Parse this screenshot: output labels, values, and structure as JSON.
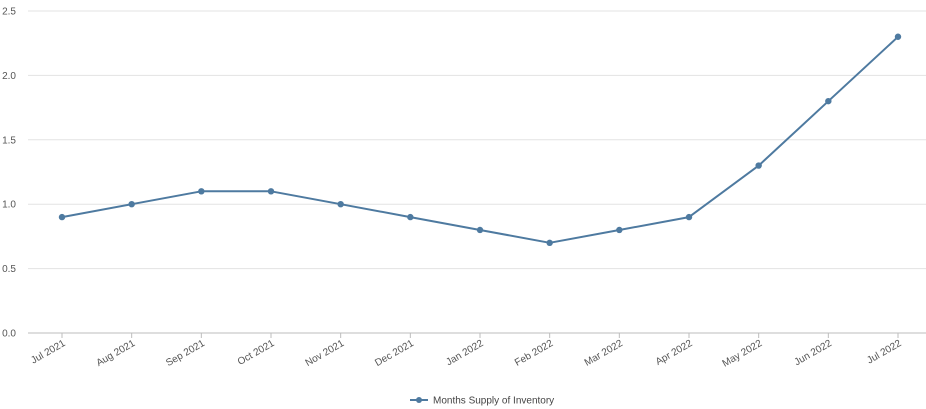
{
  "chart_data": {
    "type": "line",
    "title": "",
    "xlabel": "",
    "ylabel": "",
    "categories": [
      "Jul 2021",
      "Aug 2021",
      "Sep 2021",
      "Oct 2021",
      "Nov 2021",
      "Dec 2021",
      "Jan 2022",
      "Feb 2022",
      "Mar 2022",
      "Apr 2022",
      "May 2022",
      "Jun 2022",
      "Jul 2022"
    ],
    "series": [
      {
        "name": "Months Supply of Inventory",
        "color": "#4e7aa0",
        "values": [
          0.9,
          1.0,
          1.1,
          1.1,
          1.0,
          0.9,
          0.8,
          0.7,
          0.8,
          0.9,
          1.3,
          1.8,
          2.3
        ]
      }
    ],
    "ylim": [
      0,
      2.5
    ],
    "yticks": [
      "0.0",
      "0.5",
      "1.0",
      "1.5",
      "2.0",
      "2.5"
    ],
    "grid": true,
    "legend_position": "bottom-center"
  }
}
